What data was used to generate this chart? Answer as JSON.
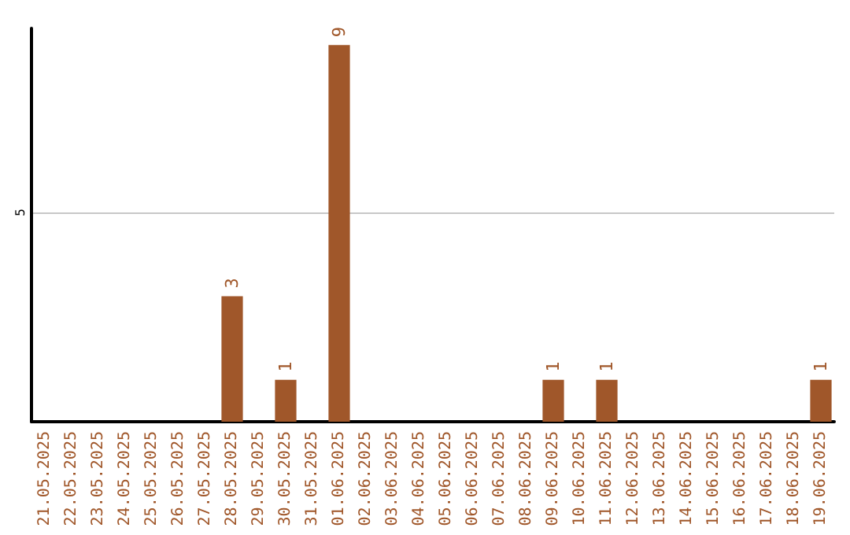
{
  "chart_data": {
    "type": "bar",
    "categories": [
      "21.05.2025",
      "22.05.2025",
      "23.05.2025",
      "24.05.2025",
      "25.05.2025",
      "26.05.2025",
      "27.05.2025",
      "28.05.2025",
      "29.05.2025",
      "30.05.2025",
      "31.05.2025",
      "01.06.2025",
      "02.06.2025",
      "03.06.2025",
      "04.06.2025",
      "05.06.2025",
      "06.06.2025",
      "07.06.2025",
      "08.06.2025",
      "09.06.2025",
      "10.06.2025",
      "11.06.2025",
      "12.06.2025",
      "13.06.2025",
      "14.06.2025",
      "15.06.2025",
      "16.06.2025",
      "17.06.2025",
      "18.06.2025",
      "19.06.2025"
    ],
    "values": [
      0,
      0,
      0,
      0,
      0,
      0,
      0,
      3,
      0,
      1,
      0,
      9,
      0,
      0,
      0,
      0,
      0,
      0,
      0,
      1,
      0,
      1,
      0,
      0,
      0,
      0,
      0,
      0,
      0,
      1
    ],
    "value_labels": [
      null,
      null,
      null,
      null,
      null,
      null,
      null,
      "3",
      null,
      "1",
      null,
      "9",
      null,
      null,
      null,
      null,
      null,
      null,
      null,
      "1",
      null,
      "1",
      null,
      null,
      null,
      null,
      null,
      null,
      null,
      "1"
    ],
    "color": "#a0572a",
    "ylim": [
      0,
      9.4
    ],
    "yticks": [
      5
    ],
    "grid": "y"
  }
}
